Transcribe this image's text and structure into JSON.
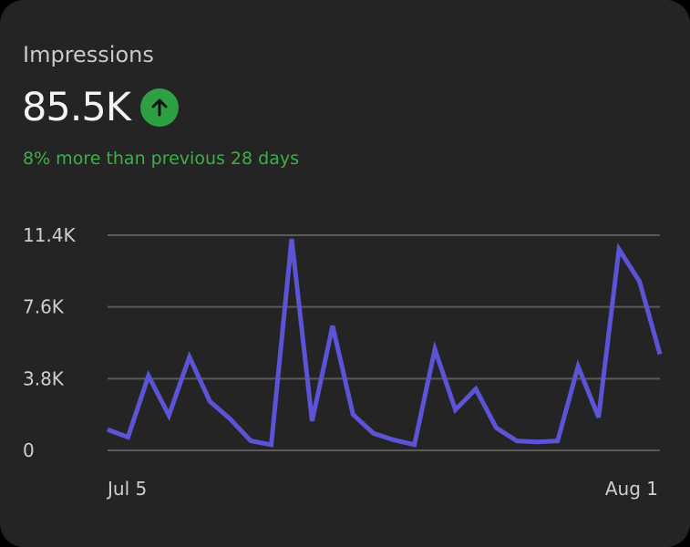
{
  "card": {
    "title": "Impressions",
    "value": "85.5K",
    "trend_icon": "arrow-up-icon",
    "comparison": "8% more than previous 28 days"
  },
  "colors": {
    "line": "#5b54d6",
    "up": "#2ea043",
    "comparison_text": "#3fae4a"
  },
  "chart_data": {
    "type": "line",
    "title": "",
    "xlabel": "",
    "ylabel": "",
    "ylim": [
      0,
      11400
    ],
    "y_ticks": [
      0,
      3800,
      7600,
      11400
    ],
    "y_tick_labels": [
      "0",
      "3.8K",
      "7.6K",
      "11.4K"
    ],
    "x_tick_labels": [
      "Jul 5",
      "Aug 1"
    ],
    "grid": true,
    "series": [
      {
        "values": [
          1100,
          700,
          3950,
          1850,
          4950,
          2600,
          1650,
          500,
          300,
          11200,
          1550,
          6600,
          1900,
          900,
          550,
          300,
          5350,
          2150,
          3250,
          1200,
          500,
          450,
          500,
          4450,
          1750,
          10650,
          8950,
          5100
        ]
      }
    ]
  }
}
